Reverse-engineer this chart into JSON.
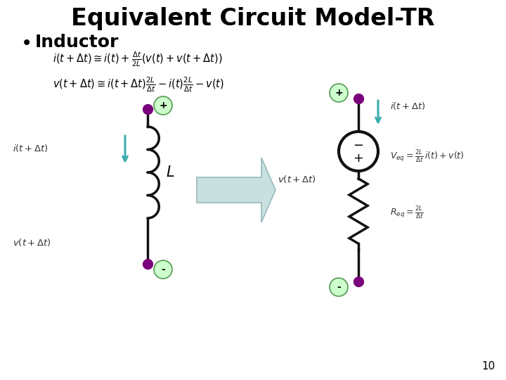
{
  "title": "Equivalent Circuit Model-TR",
  "bullet": "Inductor",
  "background_color": "#ffffff",
  "title_fontsize": 24,
  "bullet_fontsize": 18,
  "page_number": "10",
  "teal_color": "#3AACAC",
  "purple_dot_color": "#7B007B",
  "green_fill": "#CCFFCC",
  "green_edge": "#559955",
  "wire_color": "#111111",
  "resistor_color": "#111111",
  "vs_color": "#111111",
  "label_color": "#333333"
}
